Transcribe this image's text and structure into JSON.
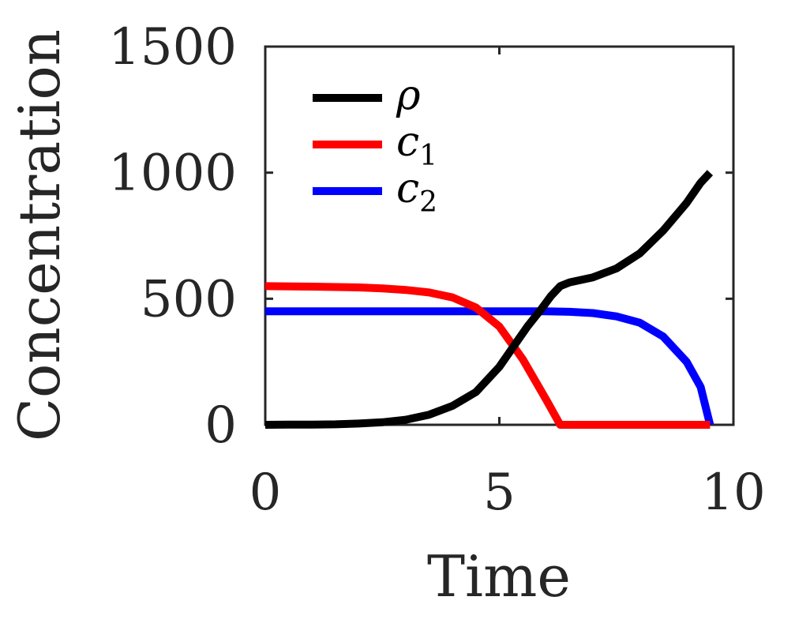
{
  "chart_data": {
    "type": "line",
    "xlabel": "Time",
    "ylabel": "Concentration",
    "xlim": [
      0,
      10
    ],
    "ylim": [
      0,
      1500
    ],
    "xticks": [
      0,
      5,
      10
    ],
    "yticks": [
      0,
      500,
      1000,
      1500
    ],
    "xtick_labels": [
      "0",
      "5",
      "10"
    ],
    "ytick_labels": [
      "0",
      "500",
      "1000",
      "1500"
    ],
    "grid": false,
    "legend_position": "top-left",
    "series": [
      {
        "name": "ρ",
        "color": "#000000",
        "x": [
          0,
          0.5,
          1,
          1.5,
          2,
          2.5,
          3,
          3.5,
          4,
          4.5,
          5,
          5.3,
          5.6,
          5.9,
          6.1,
          6.3,
          6.5,
          7,
          7.5,
          8,
          8.5,
          9,
          9.3,
          9.5
        ],
        "y": [
          0,
          0.5,
          1,
          2,
          5,
          10,
          20,
          40,
          75,
          130,
          230,
          310,
          390,
          460,
          510,
          550,
          565,
          585,
          620,
          680,
          770,
          880,
          960,
          1000
        ]
      },
      {
        "name": "c",
        "subscript": "1",
        "color": "#ff0000",
        "x": [
          0,
          1,
          2,
          2.5,
          3,
          3.5,
          4,
          4.5,
          5,
          5.5,
          6,
          6.3,
          7,
          8,
          9,
          9.5
        ],
        "y": [
          550,
          548,
          545,
          541,
          535,
          525,
          505,
          465,
          390,
          260,
          100,
          0,
          0,
          0,
          0,
          0
        ]
      },
      {
        "name": "c",
        "subscript": "2",
        "color": "#0000ff",
        "x": [
          0,
          1,
          2,
          3,
          4,
          5,
          6,
          6.5,
          7,
          7.5,
          8,
          8.5,
          9,
          9.3,
          9.5
        ],
        "y": [
          450,
          450,
          450,
          450,
          450,
          450,
          450,
          448,
          443,
          430,
          405,
          350,
          250,
          150,
          0
        ]
      }
    ]
  }
}
